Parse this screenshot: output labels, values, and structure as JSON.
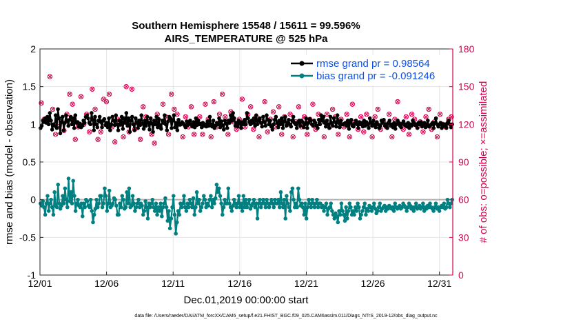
{
  "chart_data": {
    "type": "line",
    "title": "Southern Hemisphere 15548 / 15611 = 99.596%",
    "subtitle": "AIRS_TEMPERATURE @ 525 hPa",
    "xlabel": "Dec.01,2019 00:00:00 start",
    "ylabel_left": "rmse and bias (model - observation)",
    "ylabel_right": "# of obs: o=possible; ×=assimilated",
    "xlim": [
      0,
      31
    ],
    "ylim_left": [
      -1,
      2
    ],
    "ylim_right": [
      0,
      180
    ],
    "x_tick_values": [
      0,
      5,
      10,
      15,
      20,
      25,
      30
    ],
    "x_tick_labels": [
      "12/01",
      "12/06",
      "12/11",
      "12/16",
      "12/21",
      "12/26",
      "12/31"
    ],
    "y_left_ticks": [
      "-1",
      "-0.5",
      "0",
      "0.5",
      "1",
      "1.5",
      "2"
    ],
    "y_right_ticks": [
      "0",
      "30",
      "60",
      "90",
      "120",
      "150",
      "180"
    ],
    "footer": "data file: /Users/raeder/DAI/ATM_forcXX/CAM6_setup/f.e21.FHIST_BGC.f09_025.CAM6assim.011/Diags_NTrS_2019-12/obs_diag_output.nc",
    "colors": {
      "rmse": "#000000",
      "bias": "#008080",
      "obs": "#d6004f",
      "right_axis": "#d6004f",
      "legend_text": "#1050e0",
      "zero_line": "#b0b0b0"
    },
    "series": [
      {
        "name": "rmse",
        "legend": "rmse grand pr = 0.98564",
        "axis": "left",
        "values": [
          0.95,
          0.98,
          1.05,
          1.03,
          1.08,
          1.02,
          1.1,
          1.0,
          1.15,
          1.05,
          0.93,
          1.0,
          0.98,
          1.12,
          0.95,
          1.2,
          1.08,
          0.88,
          1.03,
          1.1,
          0.92,
          1.02,
          1.12,
          1.05,
          0.98,
          1.06,
          1.1,
          1.0,
          1.08,
          0.95,
          1.12,
          1.02,
          1.03,
          0.97,
          1.01,
          0.96,
          0.98,
          1.05,
          1.02,
          1.1,
          1.12,
          1.08,
          1.02,
          1.0,
          1.15,
          1.06,
          0.92,
          1.1,
          1.0,
          0.96,
          1.05,
          1.1,
          1.03,
          0.96,
          1.05,
          1.07,
          0.99,
          1.02,
          0.96,
          1.08,
          0.92,
          1.0,
          1.1,
          1.05,
          0.99,
          1.12,
          1.0,
          0.92,
          1.05,
          1.0,
          1.1,
          0.94,
          1.08,
          1.02,
          1.15,
          0.98,
          1.08,
          0.9,
          1.05,
          1.1,
          1.0,
          0.92,
          1.08,
          1.02,
          0.95,
          1.05,
          0.99,
          1.12,
          1.01,
          0.94,
          1.05,
          0.98,
          1.1,
          1.02,
          0.93,
          1.08,
          1.01,
          0.9,
          1.05,
          1.0,
          1.1,
          0.96,
          1.07,
          0.99,
          0.94,
          1.05,
          1.02,
          1.12,
          1.0,
          0.92,
          1.04,
          1.1,
          1.08,
          0.95,
          1.05,
          1.12,
          0.96,
          1.02,
          0.92,
          1.06,
          1.0,
          1.0,
          1.03,
          1.01,
          0.99,
          0.96,
          1.04,
          0.99,
          1.02,
          1.05,
          1.0,
          0.97,
          1.03,
          0.96,
          1.08,
          0.99,
          1.05,
          1.0,
          1.01,
          0.96,
          1.02,
          0.98,
          1.0,
          0.97,
          1.04,
          0.98,
          1.1,
          1.0,
          0.97,
          1.05,
          0.95,
          0.98,
          1.02,
          1.0,
          1.08,
          0.96,
          1.04,
          0.99,
          0.93,
          1.05,
          1.01,
          0.95,
          1.05,
          1.02,
          1.12,
          1.05,
          1.15,
          1.08,
          0.98,
          1.02,
          0.97,
          1.05,
          1.01,
          0.95,
          1.03,
          1.0,
          1.06,
          1.0,
          1.15,
          1.08,
          1.03,
          1.0,
          1.05,
          1.02,
          1.08,
          0.98,
          1.12,
          1.0,
          1.05,
          1.08,
          1.02,
          0.97,
          1.1,
          1.03,
          0.98,
          1.12,
          1.06,
          1.0,
          1.05,
          0.97,
          0.93,
          1.0,
          1.06,
          1.1,
          1.02,
          0.96,
          1.05,
          1.0,
          1.08,
          0.95,
          1.04,
          1.1,
          0.98,
          1.02,
          1.06,
          1.0,
          0.97,
          1.05,
          1.1,
          1.02,
          1.0,
          0.95,
          1.02,
          1.05,
          0.98,
          1.05,
          1.03,
          0.96,
          1.0,
          1.08,
          0.95,
          1.02,
          1.07,
          1.05,
          1.0,
          0.98,
          1.05,
          1.02,
          0.98,
          0.95,
          1.06,
          1.0,
          1.12,
          1.05,
          1.1,
          1.02,
          0.97,
          1.05,
          1.0,
          0.95,
          1.1,
          1.02,
          0.98,
          1.08,
          1.03,
          0.97,
          1.12,
          1.02,
          0.96,
          1.05,
          1.0,
          1.0,
          1.01,
          1.02,
          0.98,
          1.05,
          0.94,
          1.02,
          1.06,
          0.98,
          0.97,
          1.01,
          1.05,
          1.0,
          0.95,
          1.03,
          1.0,
          1.02,
          0.97,
          1.05,
          0.98,
          1.03,
          1.0,
          0.95,
          1.08,
          1.02,
          0.98,
          1.05,
          1.0,
          0.96,
          1.03,
          1.0,
          0.95,
          0.98,
          1.05,
          1.02,
          1.06,
          0.98,
          1.0,
          0.95,
          1.02,
          1.05,
          0.98,
          1.0,
          0.96,
          1.02,
          0.94,
          1.0,
          1.05,
          1.02,
          0.98,
          0.96,
          1.01,
          1.04,
          0.99,
          1.0,
          0.97,
          1.02,
          0.95,
          1.0,
          0.98,
          1.05,
          1.02,
          0.99,
          1.0,
          0.95,
          1.02,
          1.0,
          1.03,
          0.97,
          1.0,
          1.02,
          0.96,
          1.0,
          1.05,
          0.97,
          0.98,
          1.0,
          1.02,
          0.95,
          1.02,
          1.08,
          1.0,
          0.97,
          1.0,
          1.02,
          0.95,
          1.0,
          0.98,
          1.0,
          0.95,
          1.02,
          1.05,
          1.0,
          0.96,
          1.0
        ]
      },
      {
        "name": "bias",
        "legend": "bias grand pr = -0.091246",
        "axis": "left",
        "values": [
          -0.05,
          -0.08,
          -0.02,
          -0.1,
          -0.2,
          -0.05,
          0.05,
          -0.15,
          -0.05,
          0.0,
          -0.1,
          -0.2,
          0.1,
          -0.08,
          -0.1,
          0.2,
          -0.05,
          -0.12,
          -0.08,
          0.05,
          -0.05,
          0.15,
          0.0,
          -0.1,
          0.28,
          -0.02,
          0.1,
          -0.05,
          0.25,
          0.05,
          -0.15,
          -0.05,
          0.0,
          -0.08,
          -0.1,
          -0.05,
          -0.22,
          -0.05,
          -0.1,
          0.0,
          -0.02,
          -0.08,
          -0.1,
          0.0,
          -0.15,
          -0.3,
          -0.2,
          -0.12,
          0.0,
          -0.1,
          -0.05,
          0.05,
          0.05,
          -0.1,
          -0.05,
          0.15,
          0.05,
          -0.15,
          -0.05,
          0.12,
          -0.1,
          -0.08,
          -0.05,
          0.02,
          0.0,
          -0.08,
          -0.2,
          -0.2,
          -0.05,
          -0.1,
          0.05,
          0.0,
          -0.12,
          -0.1,
          0.1,
          -0.05,
          0.15,
          -0.1,
          -0.08,
          0.05,
          -0.05,
          -0.15,
          -0.1,
          -0.05,
          0.0,
          -0.1,
          -0.05,
          -0.08,
          -0.2,
          -0.15,
          -0.02,
          -0.1,
          -0.25,
          -0.05,
          -0.1,
          -0.05,
          0.0,
          -0.1,
          -0.15,
          -0.05,
          -0.2,
          -0.1,
          -0.15,
          -0.05,
          -0.22,
          -0.1,
          -0.05,
          0.02,
          -0.1,
          -0.28,
          -0.15,
          -0.38,
          -0.25,
          -0.1,
          0.05,
          -0.2,
          -0.45,
          -0.3,
          -0.15,
          -0.2,
          -0.05,
          -0.1,
          -0.05,
          0.05,
          -0.1,
          -0.15,
          -0.05,
          -0.1,
          0.0,
          -0.05,
          -0.1,
          0.02,
          -0.2,
          -0.1,
          0.1,
          -0.05,
          0.0,
          -0.15,
          -0.1,
          -0.05,
          0.05,
          0.0,
          -0.1,
          -0.05,
          -0.08,
          0.0,
          0.05,
          -0.1,
          0.0,
          -0.05,
          0.02,
          0.2,
          0.1,
          0.15,
          0.05,
          -0.05,
          -0.2,
          -0.1,
          0.0,
          -0.05,
          -0.05,
          0.15,
          -0.05,
          -0.1,
          -0.15,
          -0.08,
          0.0,
          -0.05,
          -0.1,
          -0.05,
          0.05,
          -0.1,
          -0.05,
          -0.15,
          0.05,
          -0.1,
          0.0,
          -0.1,
          -0.05,
          0.0,
          -0.12,
          -0.08,
          -0.05,
          0.0,
          -0.1,
          -0.05,
          -0.25,
          -0.05,
          0.0,
          -0.1,
          -0.05,
          0.0,
          -0.05,
          -0.1,
          0.0,
          -0.05,
          -0.1,
          -0.05,
          0.0,
          -0.05,
          -0.1,
          0.0,
          -0.05,
          -0.05,
          0.0,
          -0.1,
          0.1,
          -0.05,
          -0.1,
          0.0,
          -0.25,
          0.05,
          -0.05,
          -0.1,
          -0.15,
          0.1,
          0.15,
          0.0,
          -0.1,
          -0.05,
          -0.1,
          0.15,
          0.0,
          -0.08,
          -0.05,
          -0.1,
          -0.2,
          -0.05,
          -0.25,
          -0.1,
          0.0,
          -0.05,
          -0.1,
          0.0,
          -0.05,
          -0.1,
          -0.05,
          0.0,
          -0.1,
          -0.05,
          -0.05,
          -0.1,
          -0.08,
          -0.15,
          -0.1,
          -0.05,
          -0.2,
          -0.12,
          -0.1,
          -0.05,
          -0.15,
          -0.2,
          -0.25,
          -0.18,
          -0.22,
          -0.3,
          -0.15,
          -0.2,
          -0.05,
          -0.15,
          -0.2,
          -0.28,
          -0.1,
          -0.25,
          -0.15,
          -0.05,
          -0.1,
          -0.2,
          -0.15,
          -0.2,
          -0.1,
          -0.15,
          -0.05,
          -0.1,
          -0.25,
          -0.2,
          -0.15,
          -0.1,
          -0.05,
          -0.2,
          -0.12,
          -0.15,
          -0.08,
          -0.1,
          -0.15,
          -0.1,
          -0.05,
          -0.12,
          -0.18,
          -0.15,
          -0.1,
          -0.05,
          -0.15,
          -0.12,
          -0.1,
          -0.08,
          -0.15,
          -0.1,
          -0.12,
          -0.08,
          -0.1,
          -0.12,
          -0.1,
          -0.15,
          -0.05,
          -0.1,
          -0.12,
          -0.1,
          -0.08,
          -0.12,
          -0.1,
          -0.05,
          -0.08,
          -0.1,
          -0.15,
          -0.1,
          -0.05,
          -0.08,
          -0.12,
          -0.1,
          -0.15,
          -0.1,
          -0.05,
          -0.12,
          -0.1,
          -0.08,
          -0.12,
          -0.1,
          -0.05,
          -0.15,
          -0.1,
          -0.12,
          -0.08,
          -0.1,
          -0.05,
          -0.1,
          -0.12,
          -0.15,
          -0.1,
          -0.05,
          -0.12,
          -0.1,
          -0.15,
          -0.1,
          -0.08,
          -0.1,
          -0.05,
          -0.12,
          -0.1,
          0.0,
          -0.05,
          -0.1,
          -0.05,
          0.0
        ]
      },
      {
        "name": "obs_possible",
        "legend": "",
        "axis": "right",
        "marker": "o",
        "values": [
          137,
          124,
          125,
          158,
          132,
          112,
          118,
          122,
          115,
          128,
          144,
          136,
          108,
          118,
          142,
          120,
          128,
          114,
          148,
          132,
          108,
          114,
          140,
          138,
          144,
          118,
          106,
          124,
          120,
          110,
          150,
          114,
          148,
          116,
          122,
          108,
          134,
          126,
          122,
          112,
          105,
          128,
          118,
          136,
          126,
          112,
          144,
          132,
          128,
          120,
          110,
          126,
          118,
          134,
          112,
          122,
          126,
          112,
          136,
          124,
          110,
          138,
          118,
          128,
          144,
          126,
          112,
          130,
          122,
          116,
          124,
          140,
          118,
          128,
          134,
          116,
          126,
          110,
          122,
          138,
          114,
          124,
          130,
          118,
          134,
          112,
          126,
          120,
          128,
          110,
          122,
          134,
          118,
          126,
          112,
          124,
          136,
          116,
          128,
          122,
          110,
          128,
          118,
          132,
          126,
          112,
          124,
          118,
          128,
          110,
          136,
          122,
          116,
          126,
          114,
          128,
          120,
          110,
          126,
          132,
          116,
          122,
          118,
          128,
          110,
          124,
          138,
          120,
          116,
          126,
          112,
          128,
          124,
          118,
          122,
          114,
          126,
          132,
          116,
          122,
          110,
          128,
          120,
          118,
          124,
          126
        ]
      },
      {
        "name": "obs_assimilated",
        "legend": "",
        "axis": "right",
        "marker": "x",
        "values": [
          137,
          124,
          125,
          158,
          132,
          112,
          118,
          122,
          115,
          128,
          144,
          136,
          108,
          118,
          142,
          120,
          128,
          114,
          148,
          132,
          108,
          114,
          140,
          138,
          144,
          118,
          106,
          124,
          120,
          110,
          150,
          114,
          148,
          116,
          122,
          108,
          134,
          126,
          122,
          112,
          105,
          128,
          118,
          136,
          126,
          112,
          144,
          132,
          128,
          120,
          110,
          126,
          118,
          134,
          112,
          122,
          126,
          112,
          136,
          124,
          110,
          138,
          118,
          128,
          144,
          126,
          112,
          130,
          122,
          116,
          124,
          140,
          118,
          128,
          134,
          116,
          126,
          110,
          122,
          138,
          114,
          124,
          130,
          118,
          134,
          112,
          126,
          120,
          128,
          110,
          122,
          134,
          118,
          126,
          112,
          124,
          136,
          116,
          128,
          122,
          110,
          128,
          118,
          132,
          126,
          112,
          124,
          118,
          128,
          110,
          136,
          122,
          116,
          126,
          114,
          128,
          120,
          110,
          126,
          132,
          116,
          122,
          118,
          128,
          110,
          124,
          138,
          120,
          116,
          126,
          112,
          128,
          124,
          118,
          122,
          114,
          126,
          132,
          116,
          122,
          110,
          128,
          120,
          118,
          124,
          126
        ]
      }
    ]
  }
}
